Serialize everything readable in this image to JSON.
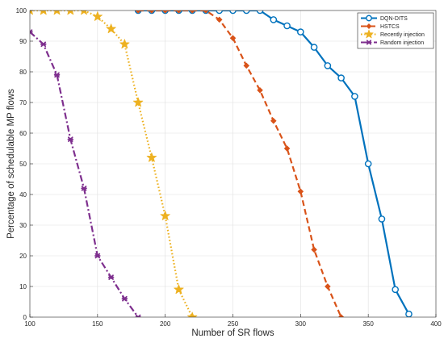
{
  "chart_data": {
    "type": "line",
    "xlabel": "Number of SR flows",
    "ylabel": "Percentage of schedulable MP flows",
    "xlim": [
      100,
      400
    ],
    "ylim": [
      0,
      100
    ],
    "xticks": [
      100,
      150,
      200,
      250,
      300,
      350,
      400
    ],
    "yticks": [
      0,
      10,
      20,
      30,
      40,
      50,
      60,
      70,
      80,
      90,
      100
    ],
    "grid": true,
    "legend_position": "top-right",
    "series": [
      {
        "name": "DQN-DITS",
        "color": "#0072BD",
        "line_style": "solid",
        "marker": "circle",
        "x": [
          180,
          190,
          200,
          210,
          220,
          230,
          240,
          250,
          260,
          270,
          280,
          290,
          300,
          310,
          320,
          330,
          340,
          350,
          360,
          370,
          380
        ],
        "y": [
          100,
          100,
          100,
          100,
          100,
          100,
          100,
          100,
          100,
          100,
          97,
          95,
          93,
          88,
          82,
          78,
          72,
          50,
          32,
          9,
          1
        ]
      },
      {
        "name": "HSTCS",
        "color": "#D95319",
        "line_style": "dashed",
        "marker": "diamond",
        "x": [
          180,
          190,
          200,
          210,
          220,
          230,
          240,
          250,
          260,
          270,
          280,
          290,
          300,
          310,
          320,
          330
        ],
        "y": [
          100,
          100,
          100,
          100,
          100,
          100,
          97,
          91,
          82,
          74,
          64,
          55,
          41,
          22,
          10,
          0
        ]
      },
      {
        "name": "Recently injection",
        "color": "#EDB120",
        "line_style": "dotted",
        "marker": "star",
        "x": [
          100,
          110,
          120,
          130,
          140,
          150,
          160,
          170,
          180,
          190,
          200,
          210,
          220
        ],
        "y": [
          100,
          100,
          100,
          100,
          100,
          98,
          94,
          89,
          70,
          52,
          33,
          9,
          0
        ]
      },
      {
        "name": "Random injection",
        "color": "#7E2F8E",
        "line_style": "dashdot",
        "marker": "cross",
        "x": [
          100,
          110,
          120,
          130,
          140,
          150,
          160,
          170,
          180
        ],
        "y": [
          93,
          89,
          79,
          58,
          42,
          20,
          13,
          6,
          0
        ]
      }
    ]
  }
}
